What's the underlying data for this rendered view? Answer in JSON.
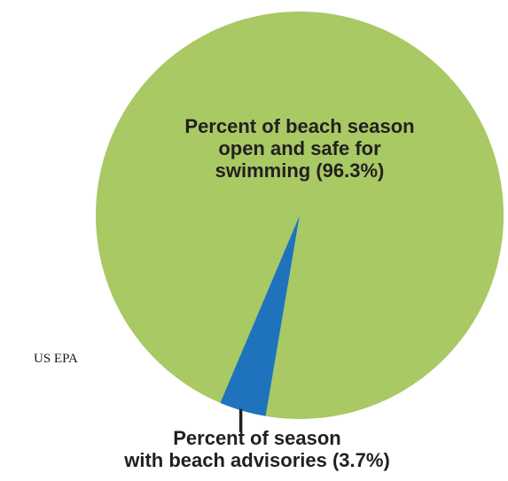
{
  "source": "US EPA",
  "chart_data": {
    "type": "pie",
    "title": "",
    "slices": [
      {
        "label_lines": [
          "Percent of beach season",
          "open and safe for",
          "swimming (96.3%)"
        ],
        "value": 96.3,
        "color": "#a8c963"
      },
      {
        "label_lines": [
          "Percent of season",
          "with beach advisories (3.7%)"
        ],
        "value": 3.7,
        "color": "#1f73bd"
      }
    ]
  }
}
